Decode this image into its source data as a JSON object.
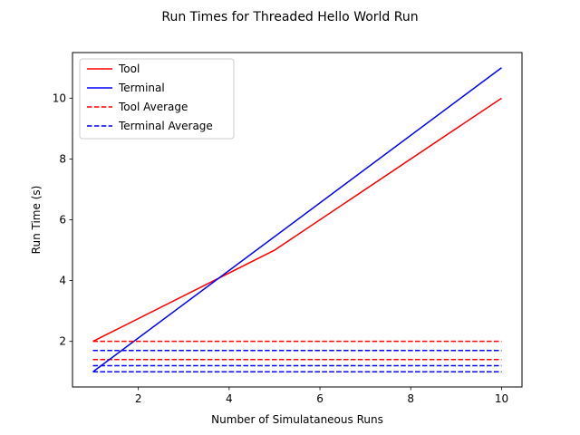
{
  "chart_data": {
    "type": "line",
    "title": "Run Times for Threaded Hello World Run",
    "xlabel": "Number of Simulataneous Runs",
    "ylabel": "Run Time (s)",
    "xlim": [
      0.55,
      10.45
    ],
    "ylim": [
      0.5,
      11.5
    ],
    "xticks": [
      2,
      4,
      6,
      8,
      10
    ],
    "yticks": [
      2,
      4,
      6,
      8,
      10
    ],
    "grid": false,
    "legend_position": "top-left",
    "series": [
      {
        "name": "Tool",
        "color": "#ff0000",
        "style": "solid",
        "x": [
          1,
          5,
          10
        ],
        "y": [
          2,
          5,
          10
        ]
      },
      {
        "name": "Terminal",
        "color": "#0000ff",
        "style": "solid",
        "x": [
          1,
          10
        ],
        "y": [
          1,
          11
        ]
      },
      {
        "name": "Tool Average",
        "color": "#ff0000",
        "style": "dashed",
        "x": [
          1,
          10
        ],
        "y": [
          2,
          2
        ]
      },
      {
        "name": "Terminal Average",
        "color": "#0000ff",
        "style": "dashed",
        "x": [
          1,
          10
        ],
        "y": [
          1.7,
          1.7
        ]
      }
    ],
    "extra_lines": [
      {
        "color": "#ff0000",
        "style": "dashed",
        "x": [
          1,
          10
        ],
        "y": [
          1.4,
          1.4
        ]
      },
      {
        "color": "#0000ff",
        "style": "dashed",
        "x": [
          1,
          10
        ],
        "y": [
          1.2,
          1.2
        ]
      },
      {
        "color": "#ff0000",
        "style": "dashed",
        "x": [
          1,
          10
        ],
        "y": [
          1.0,
          1.0
        ]
      },
      {
        "color": "#0000ff",
        "style": "dashed",
        "x": [
          1,
          10
        ],
        "y": [
          1.0,
          1.0
        ]
      }
    ]
  }
}
